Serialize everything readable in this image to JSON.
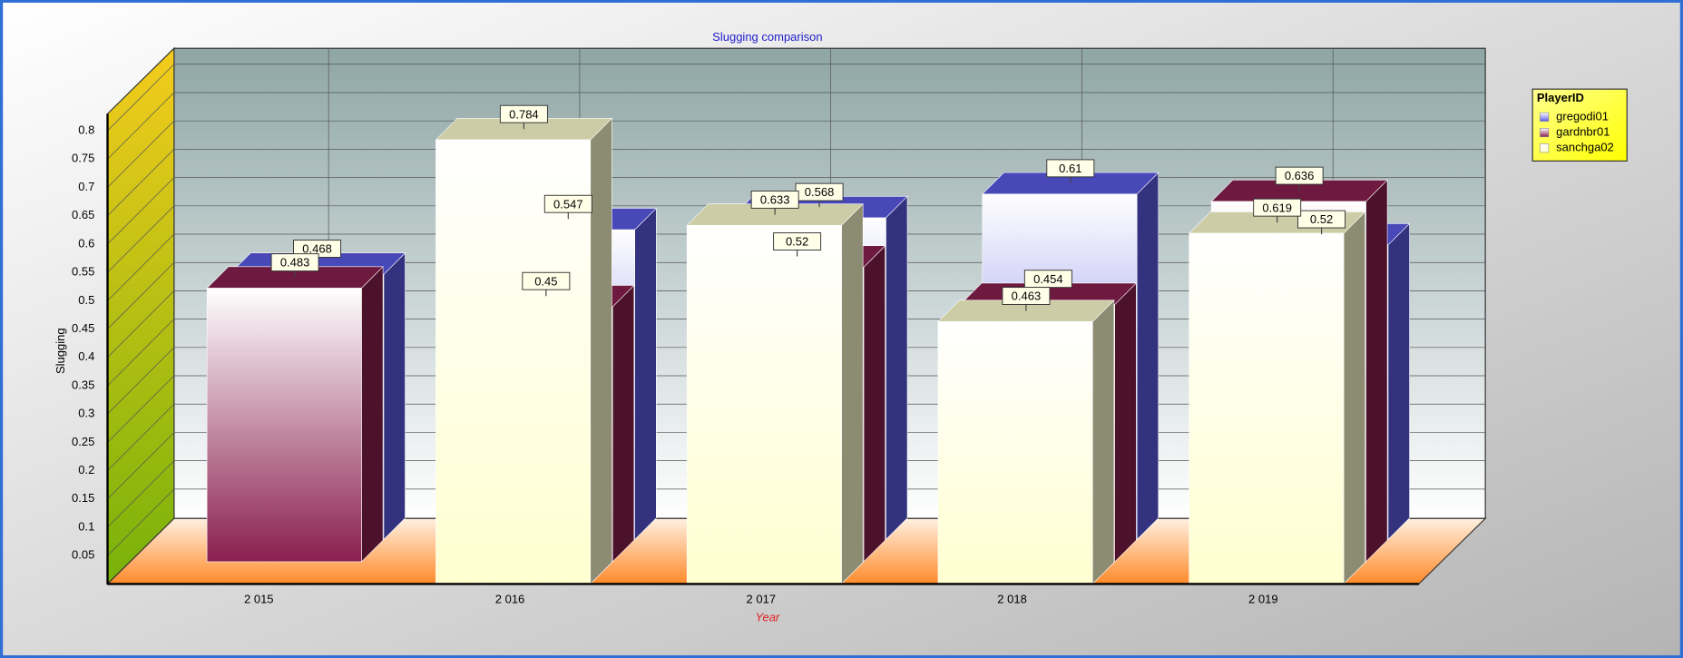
{
  "chart_data": {
    "type": "bar3d",
    "title": "Slugging comparison",
    "x_label": "Year",
    "y_label": "Slugging",
    "categories": [
      "2 015",
      "2 016",
      "2 017",
      "2 018",
      "2 019"
    ],
    "legend_title": "PlayerID",
    "legend": "upper right",
    "grid": true,
    "series": [
      {
        "name": "gregodi01",
        "color": "#5a5ae6",
        "values": [
          0.468,
          0.547,
          0.568,
          0.61,
          0.52
        ]
      },
      {
        "name": "gardnbr01",
        "color": "#8a1f4f",
        "values": [
          0.483,
          0.45,
          0.52,
          0.454,
          0.636
        ]
      },
      {
        "name": "sanchga02",
        "color": "#ffffd0",
        "values": [
          null,
          0.784,
          0.633,
          0.463,
          0.619
        ]
      }
    ],
    "ylim": [
      0,
      0.83
    ],
    "yticks": [
      0.05,
      0.1,
      0.15,
      0.2,
      0.25,
      0.3,
      0.35,
      0.4,
      0.45,
      0.5,
      0.55,
      0.6,
      0.65,
      0.7,
      0.75,
      0.8
    ]
  }
}
